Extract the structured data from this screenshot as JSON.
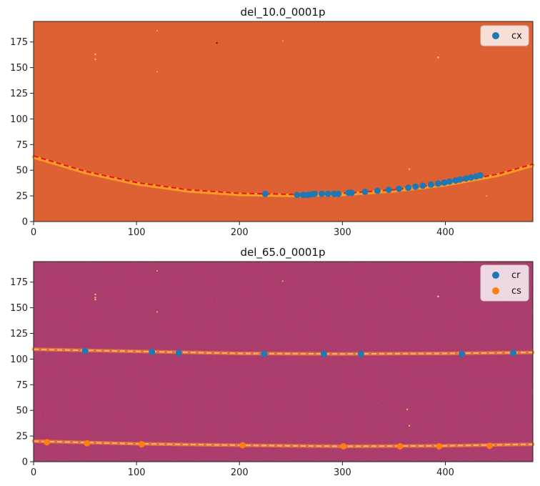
{
  "chart_data": [
    {
      "type": "scatter",
      "title": "del_10.0_0001p",
      "xlim": [
        0,
        485
      ],
      "ylim": [
        0,
        195
      ],
      "xticks": [
        0,
        100,
        200,
        300,
        400
      ],
      "yticks": [
        0,
        25,
        50,
        75,
        100,
        125,
        150,
        175
      ],
      "background_color": "#e05a2b",
      "legend": {
        "placement": "top-right",
        "entries": [
          "cx"
        ]
      },
      "curves": [
        {
          "kind": "glow",
          "color": "#ffb020",
          "offset": -1.5,
          "points": [
            [
              0,
              64
            ],
            [
              50,
              49
            ],
            [
              100,
              38
            ],
            [
              150,
              31
            ],
            [
              200,
              27.5
            ],
            [
              250,
              26.5
            ],
            [
              300,
              27.5
            ],
            [
              350,
              31
            ],
            [
              400,
              37
            ],
            [
              450,
              46
            ],
            [
              485,
              56
            ]
          ]
        },
        {
          "kind": "dashed-fit",
          "color": "#e8101a",
          "points": [
            [
              0,
              64
            ],
            [
              50,
              49
            ],
            [
              100,
              38
            ],
            [
              150,
              31
            ],
            [
              200,
              27.5
            ],
            [
              250,
              26.5
            ],
            [
              300,
              27.5
            ],
            [
              350,
              31
            ],
            [
              400,
              37
            ],
            [
              450,
              46
            ],
            [
              485,
              56
            ]
          ]
        }
      ],
      "series": [
        {
          "name": "cx",
          "color": "#1f77b4",
          "points": [
            [
              225,
              27
            ],
            [
              256,
              26
            ],
            [
              262,
              26
            ],
            [
              266,
              26
            ],
            [
              270,
              26.5
            ],
            [
              273,
              27
            ],
            [
              280,
              27
            ],
            [
              286,
              27
            ],
            [
              292,
              27
            ],
            [
              296,
              27
            ],
            [
              306,
              28
            ],
            [
              309,
              28
            ],
            [
              322,
              29
            ],
            [
              334,
              30
            ],
            [
              345,
              31
            ],
            [
              355,
              32
            ],
            [
              364,
              33
            ],
            [
              371,
              34
            ],
            [
              378,
              35
            ],
            [
              386,
              36
            ],
            [
              393,
              37
            ],
            [
              399,
              38
            ],
            [
              404,
              39
            ],
            [
              410,
              40
            ],
            [
              414,
              41
            ],
            [
              420,
              42
            ],
            [
              425,
              43
            ],
            [
              430,
              44
            ],
            [
              434,
              45
            ]
          ]
        }
      ],
      "speckles": [
        [
          120,
          186,
          "#f0a060"
        ],
        [
          60,
          163,
          "#f5d070"
        ],
        [
          60,
          158,
          "#f5d070"
        ],
        [
          178,
          174,
          "#3a1a10"
        ],
        [
          242,
          176,
          "#f0a060"
        ],
        [
          393,
          160,
          "#f8e8d0"
        ],
        [
          120,
          146,
          "#f0a060"
        ],
        [
          365,
          51,
          "#f5c060"
        ],
        [
          440,
          25,
          "#f0a060"
        ]
      ]
    },
    {
      "type": "scatter",
      "title": "del_65.0_0001p",
      "xlim": [
        0,
        485
      ],
      "ylim": [
        0,
        195
      ],
      "xticks": [
        0,
        100,
        200,
        300,
        400
      ],
      "yticks": [
        0,
        25,
        50,
        75,
        100,
        125,
        150,
        175
      ],
      "background_color": "#a8305a",
      "legend": {
        "placement": "top-right",
        "entries": [
          "cr",
          "cs"
        ]
      },
      "curves": [
        {
          "kind": "glow",
          "color": "#f08030",
          "offset": 0,
          "points": [
            [
              0,
              109.5
            ],
            [
              100,
              107.5
            ],
            [
              200,
              105.5
            ],
            [
              300,
              105
            ],
            [
              400,
              105.5
            ],
            [
              485,
              106.5
            ]
          ]
        },
        {
          "kind": "dashed-fit",
          "color": "#ffb070",
          "points": [
            [
              0,
              109.5
            ],
            [
              100,
              107.5
            ],
            [
              200,
              105.5
            ],
            [
              300,
              105
            ],
            [
              400,
              105.5
            ],
            [
              485,
              106.5
            ]
          ]
        },
        {
          "kind": "glow",
          "color": "#f08030",
          "offset": 0,
          "points": [
            [
              0,
              20
            ],
            [
              100,
              17.5
            ],
            [
              200,
              16
            ],
            [
              300,
              15
            ],
            [
              400,
              15.5
            ],
            [
              485,
              17
            ]
          ]
        },
        {
          "kind": "dashed-fit",
          "color": "#ffb070",
          "points": [
            [
              0,
              20
            ],
            [
              100,
              17.5
            ],
            [
              200,
              16
            ],
            [
              300,
              15
            ],
            [
              400,
              15.5
            ],
            [
              485,
              17
            ]
          ]
        }
      ],
      "series": [
        {
          "name": "cr",
          "color": "#1f77b4",
          "points": [
            [
              50,
              108
            ],
            [
              115,
              107
            ],
            [
              141,
              106
            ],
            [
              224,
              105
            ],
            [
              282,
              105
            ],
            [
              318,
              105
            ],
            [
              416,
              105
            ],
            [
              466,
              106
            ]
          ]
        },
        {
          "name": "cs",
          "color": "#ff7f0e",
          "points": [
            [
              13,
              19
            ],
            [
              52,
              18
            ],
            [
              105,
              17
            ],
            [
              203,
              16
            ],
            [
              301,
              15
            ],
            [
              356,
              15
            ],
            [
              394,
              15
            ],
            [
              443,
              15.5
            ]
          ]
        }
      ],
      "speckles": [
        [
          120,
          186,
          "#f0a060"
        ],
        [
          60,
          163,
          "#f5d070"
        ],
        [
          60,
          160,
          "#f5d070"
        ],
        [
          60,
          158,
          "#f5d070"
        ],
        [
          242,
          176,
          "#f0a060"
        ],
        [
          393,
          161,
          "#f8e8d0"
        ],
        [
          120,
          146,
          "#f0a060"
        ],
        [
          363,
          51,
          "#f5c060"
        ],
        [
          365,
          35,
          "#f5c060"
        ]
      ]
    }
  ]
}
